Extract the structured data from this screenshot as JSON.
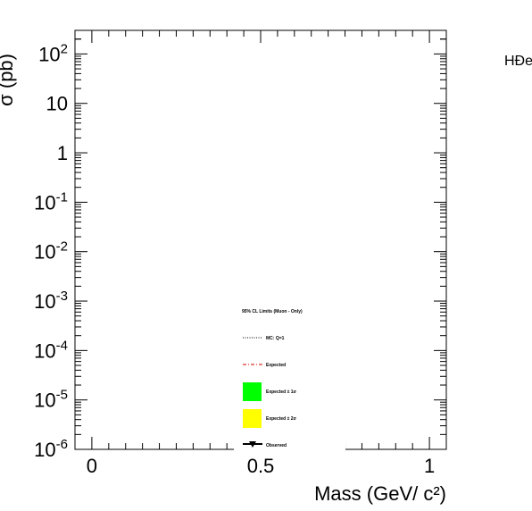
{
  "chart_data": {
    "type": "line",
    "title": "",
    "xlabel": "Mass (GeV/ c²)",
    "ylabel": "σ (pb)",
    "xlim": [
      -0.05,
      1.05
    ],
    "ylim": [
      1e-06,
      300
    ],
    "y_scale": "log",
    "grid": false,
    "x_ticks": [
      0,
      0.5,
      1
    ],
    "x_tick_labels": [
      "0",
      "0.5",
      "1"
    ],
    "y_ticks": [
      1e-06,
      1e-05,
      0.0001,
      0.001,
      0.01,
      0.1,
      1,
      10,
      100
    ],
    "y_tick_labels": [
      {
        "base": "10",
        "exp": "-6"
      },
      {
        "base": "10",
        "exp": "-5"
      },
      {
        "base": "10",
        "exp": "-4"
      },
      {
        "base": "10",
        "exp": "-3"
      },
      {
        "base": "10",
        "exp": "-2"
      },
      {
        "base": "10",
        "exp": "-1"
      },
      {
        "base": "1",
        "exp": ""
      },
      {
        "base": "10",
        "exp": ""
      },
      {
        "base": "10",
        "exp": "2"
      }
    ],
    "side_label": "HÐe",
    "legend": {
      "header": "95% CL Limits (Muon - Only)",
      "entries": [
        {
          "label": "MC: Q=1",
          "style": "dotted-line",
          "color": "#000000"
        },
        {
          "label": "Expected",
          "style": "dashdot-line",
          "color": "#d40000"
        },
        {
          "label": "Expected ± 1σ",
          "style": "box",
          "color": "#00ff00"
        },
        {
          "label": "Expected ± 2σ",
          "style": "box",
          "color": "#ffff00"
        },
        {
          "label": "Observed",
          "style": "line-marker",
          "color": "#000000"
        }
      ]
    },
    "series": []
  }
}
